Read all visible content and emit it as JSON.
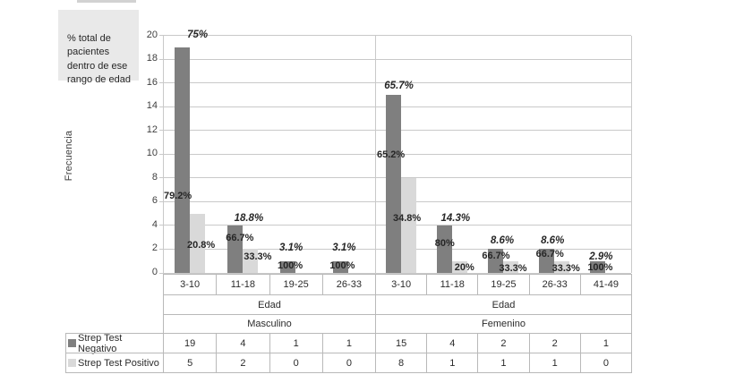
{
  "annotation": {
    "text": "% total de\npacientes\ndentro de ese\nrango de edad",
    "bg": "#e9e9e9"
  },
  "colors": {
    "bar_dark": "#7f7f7f",
    "bar_light": "#d9d9d9",
    "gridline": "#c9c9c9",
    "table_border": "#b9b9b9",
    "text": "#3f3f3f",
    "label_text": "#262626"
  },
  "chart_data": {
    "type": "bar",
    "title": "",
    "ylabel": "Frecuencia",
    "ylim": [
      0,
      20
    ],
    "y_ticks": [
      0,
      2,
      4,
      6,
      8,
      10,
      12,
      14,
      16,
      18,
      20
    ],
    "grid": true,
    "legend_position": "bottom-table",
    "groups": [
      {
        "label": "Masculino",
        "axis_label": "Edad",
        "categories": [
          "3-10",
          "11-18",
          "19-25",
          "26-33"
        ]
      },
      {
        "label": "Femenino",
        "axis_label": "Edad",
        "categories": [
          "3-10",
          "11-18",
          "19-25",
          "26-33",
          "41-49"
        ]
      }
    ],
    "series": [
      {
        "name": "Strep Test Negativo",
        "color": "#7f7f7f",
        "values": [
          [
            19,
            4,
            1,
            1
          ],
          [
            15,
            4,
            2,
            2,
            1
          ]
        ]
      },
      {
        "name": "Strep Test Positivo",
        "color": "#d9d9d9",
        "values": [
          [
            5,
            2,
            0,
            0
          ],
          [
            8,
            1,
            1,
            1,
            0
          ]
        ]
      }
    ],
    "point_labels": [
      {
        "g": 0,
        "c": 0,
        "text": "75%",
        "y": 20.0,
        "dx": 9,
        "i": true
      },
      {
        "g": 0,
        "c": 0,
        "text": "79.2%",
        "y": 6.4,
        "dx": -13
      },
      {
        "g": 0,
        "c": 0,
        "text": "20.8%",
        "y": 2.26,
        "dx": 13
      },
      {
        "g": 0,
        "c": 1,
        "text": "18.8%",
        "y": 4.52,
        "dx": 7,
        "i": true
      },
      {
        "g": 0,
        "c": 1,
        "text": "66.7%",
        "y": 2.86,
        "dx": -3
      },
      {
        "g": 0,
        "c": 1,
        "text": "33.3%",
        "y": 1.28,
        "dx": 17
      },
      {
        "g": 0,
        "c": 2,
        "text": "3.1%",
        "y": 2.05,
        "dx": -5,
        "i": true
      },
      {
        "g": 0,
        "c": 2,
        "text": "100%",
        "y": 0.55,
        "dx": -6
      },
      {
        "g": 0,
        "c": 3,
        "text": "3.1%",
        "y": 2.05,
        "dx": -5,
        "i": true
      },
      {
        "g": 0,
        "c": 3,
        "text": "100%",
        "y": 0.55,
        "dx": -7
      },
      {
        "g": 1,
        "c": 0,
        "text": "65.7%",
        "y": 15.67,
        "dx": -2,
        "i": true
      },
      {
        "g": 1,
        "c": 0,
        "text": "65.2%",
        "y": 9.87,
        "dx": -11
      },
      {
        "g": 1,
        "c": 0,
        "text": "34.8%",
        "y": 4.52,
        "dx": 7
      },
      {
        "g": 1,
        "c": 1,
        "text": "14.3%",
        "y": 4.52,
        "dx": 4,
        "i": true
      },
      {
        "g": 1,
        "c": 1,
        "text": "80%",
        "y": 2.41,
        "dx": -8
      },
      {
        "g": 1,
        "c": 1,
        "text": "20%",
        "y": 0.38,
        "dx": 14
      },
      {
        "g": 1,
        "c": 2,
        "text": "8.6%",
        "y": 2.64,
        "dx": -1,
        "i": true
      },
      {
        "g": 1,
        "c": 2,
        "text": "66.7%",
        "y": 1.36,
        "dx": -8
      },
      {
        "g": 1,
        "c": 2,
        "text": "33.3%",
        "y": 0.3,
        "dx": 11
      },
      {
        "g": 1,
        "c": 3,
        "text": "8.6%",
        "y": 2.64,
        "dx": -2,
        "i": true
      },
      {
        "g": 1,
        "c": 3,
        "text": "66.7%",
        "y": 1.51,
        "dx": -5
      },
      {
        "g": 1,
        "c": 3,
        "text": "33.3%",
        "y": 0.3,
        "dx": 13
      },
      {
        "g": 1,
        "c": 4,
        "text": "2.9%",
        "y": 1.28,
        "dx": -5,
        "i": true
      },
      {
        "g": 1,
        "c": 4,
        "text": "100%",
        "y": 0.4,
        "dx": -6
      }
    ]
  }
}
